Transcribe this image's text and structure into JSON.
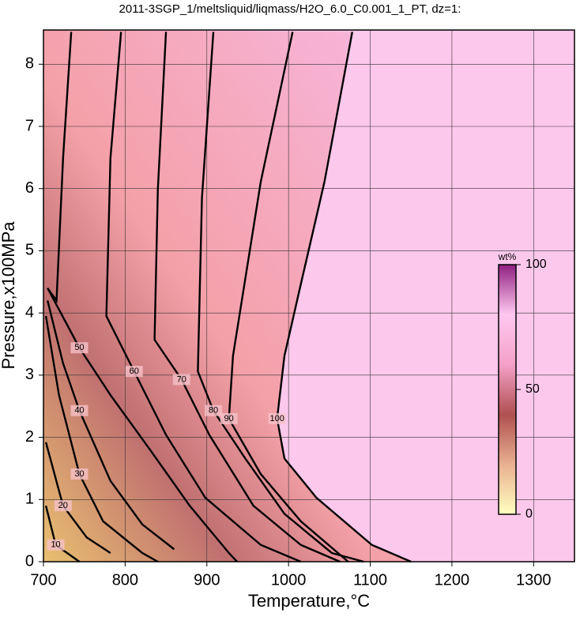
{
  "chart_data": {
    "type": "contour",
    "title": "2011-3SGP_1/meltsliquid/liqmass/H2O_6.0_C0.001_1_PT, dz=1:",
    "x_label": "Temperature,°C",
    "y_label": "Pressure,x100MPa",
    "xlim": [
      700,
      1350
    ],
    "ylim": [
      0,
      8.55
    ],
    "xticks": [
      700,
      800,
      900,
      1000,
      1100,
      1200,
      1300
    ],
    "yticks": [
      0,
      1,
      2,
      3,
      4,
      5,
      6,
      7,
      8
    ],
    "grid": true,
    "color": "#000000",
    "series": [
      {
        "name": "10",
        "x": [
          703,
          715,
          744
        ],
        "values": [
          0.9,
          0.27,
          0
        ]
      },
      {
        "name": "20",
        "x": [
          703,
          724,
          753,
          782
        ],
        "values": [
          1.92,
          0.9,
          0.39,
          0.14
        ]
      },
      {
        "name": "30",
        "x": [
          703,
          719,
          744,
          773,
          821,
          840
        ],
        "values": [
          3.95,
          2.68,
          1.41,
          0.65,
          0.14,
          0
        ]
      },
      {
        "name": "40",
        "x": [
          705,
          724,
          744,
          782,
          821,
          860
        ],
        "values": [
          4.2,
          3.19,
          2.43,
          1.3,
          0.6,
          0.2
        ]
      },
      {
        "name": "50",
        "x": [
          734,
          724,
          716,
          705,
          744,
          782,
          831,
          879,
          927,
          937
        ],
        "values": [
          8.52,
          6.49,
          4.2,
          4.4,
          3.44,
          2.68,
          1.79,
          0.9,
          0.14,
          0
        ]
      },
      {
        "name": "60",
        "x": [
          795,
          782,
          777,
          811,
          850,
          898,
          966,
          1015
        ],
        "values": [
          8.52,
          6.49,
          3.95,
          3.06,
          2.04,
          1.03,
          0.27,
          0
        ]
      },
      {
        "name": "70",
        "x": [
          850,
          840,
          836,
          869,
          903,
          957,
          1015,
          1063
        ],
        "values": [
          8.52,
          5.98,
          3.57,
          2.93,
          2.04,
          0.9,
          0.27,
          0
        ]
      },
      {
        "name": "80",
        "x": [
          908,
          894,
          889,
          908,
          947,
          995,
          1053,
          1092
        ],
        "values": [
          8.52,
          5.85,
          3.06,
          2.43,
          1.66,
          0.77,
          0.14,
          0
        ]
      },
      {
        "name": "90",
        "x": [
          1005,
          966,
          932,
          927,
          966,
          1015,
          1073
        ],
        "values": [
          8.52,
          6.11,
          3.31,
          2.3,
          1.41,
          0.65,
          0
        ]
      },
      {
        "name": "100",
        "x": [
          1078,
          1044,
          1015,
          995,
          986,
          995,
          1034,
          1102,
          1150
        ],
        "values": [
          8.52,
          6.11,
          4.46,
          3.31,
          2.3,
          1.66,
          1.03,
          0.27,
          0
        ]
      }
    ],
    "colorbar": {
      "label": "wt%",
      "lim": [
        0,
        100
      ],
      "ticks": [
        0,
        50,
        100
      ],
      "colors": [
        "#ffffc0",
        "#e8b090",
        "#b05050",
        "#f4a0c8",
        "#ffc8f0",
        "#902080"
      ]
    }
  }
}
